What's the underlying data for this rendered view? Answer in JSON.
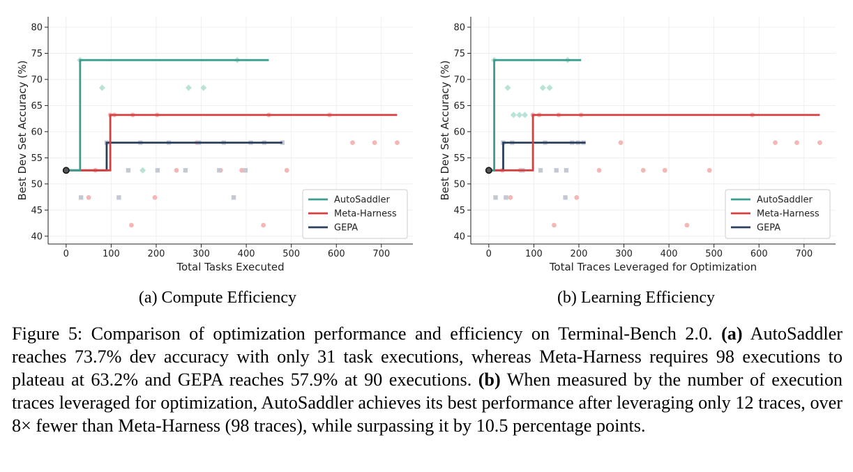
{
  "chart_data": [
    {
      "type": "scatter",
      "subcaption": "(a) Compute Efficiency",
      "xlabel": "Total Tasks Executed",
      "ylabel": "Best Dev Set Accuracy (%)",
      "xlim": [
        -40,
        770
      ],
      "ylim": [
        38.5,
        82
      ],
      "xticks": [
        0,
        100,
        200,
        300,
        400,
        500,
        600,
        700
      ],
      "yticks": [
        40,
        45,
        50,
        55,
        60,
        65,
        70,
        75,
        80
      ],
      "grid": true,
      "legend_position": "lower right",
      "start_point": {
        "x": 0,
        "y": 52.6
      },
      "series": [
        {
          "name": "AutoSaddler",
          "color": "#3a9e8f",
          "scatter_color": "#b9e3d7",
          "marker": "diamond",
          "step": [
            [
              0,
              52.6
            ],
            [
              31,
              52.6
            ],
            [
              31,
              73.7
            ],
            [
              450,
              73.7
            ]
          ],
          "points": [
            [
              31,
              73.7
            ],
            [
              80,
              68.4
            ],
            [
              170,
              52.6
            ],
            [
              272,
              68.4
            ],
            [
              305,
              68.4
            ],
            [
              380,
              73.7
            ]
          ]
        },
        {
          "name": "Meta-Harness",
          "color": "#d63f3f",
          "scatter_color": "#f3b7b8",
          "marker": "circle",
          "step": [
            [
              0,
              52.6
            ],
            [
              98,
              52.6
            ],
            [
              98,
              63.2
            ],
            [
              735,
              63.2
            ]
          ],
          "points": [
            [
              50,
              47.4
            ],
            [
              65,
              52.6
            ],
            [
              98,
              63.2
            ],
            [
              107,
              63.2
            ],
            [
              145,
              42.1
            ],
            [
              148,
              63.2
            ],
            [
              197,
              47.4
            ],
            [
              202,
              63.2
            ],
            [
              245,
              52.6
            ],
            [
              290,
              57.9
            ],
            [
              343,
              52.6
            ],
            [
              390,
              52.6
            ],
            [
              438,
              42.1
            ],
            [
              450,
              63.2
            ],
            [
              490,
              52.6
            ],
            [
              585,
              63.2
            ],
            [
              636,
              57.9
            ],
            [
              685,
              57.9
            ],
            [
              735,
              57.9
            ]
          ]
        },
        {
          "name": "GEPA",
          "color": "#2b3f5e",
          "scatter_color": "#c4c8d3",
          "marker": "square",
          "step": [
            [
              0,
              52.6
            ],
            [
              90,
              52.6
            ],
            [
              90,
              57.9
            ],
            [
              480,
              57.9
            ]
          ],
          "points": [
            [
              33,
              47.4
            ],
            [
              90,
              57.9
            ],
            [
              117,
              47.4
            ],
            [
              138,
              52.6
            ],
            [
              165,
              57.9
            ],
            [
              203,
              52.6
            ],
            [
              228,
              57.9
            ],
            [
              265,
              52.6
            ],
            [
              295,
              57.9
            ],
            [
              340,
              52.6
            ],
            [
              350,
              57.9
            ],
            [
              372,
              47.4
            ],
            [
              398,
              52.6
            ],
            [
              410,
              57.9
            ],
            [
              440,
              57.9
            ],
            [
              480,
              57.9
            ]
          ]
        }
      ]
    },
    {
      "type": "scatter",
      "subcaption": "(b) Learning Efficiency",
      "xlabel": "Total Traces Leveraged for Optimization",
      "ylabel": "Best Dev Set Accuracy (%)",
      "xlim": [
        -40,
        770
      ],
      "ylim": [
        38.5,
        82
      ],
      "xticks": [
        0,
        100,
        200,
        300,
        400,
        500,
        600,
        700
      ],
      "yticks": [
        40,
        45,
        50,
        55,
        60,
        65,
        70,
        75,
        80
      ],
      "grid": true,
      "legend_position": "lower right",
      "start_point": {
        "x": 0,
        "y": 52.6
      },
      "series": [
        {
          "name": "AutoSaddler",
          "color": "#3a9e8f",
          "scatter_color": "#b9e3d7",
          "marker": "diamond",
          "step": [
            [
              0,
              52.6
            ],
            [
              12,
              52.6
            ],
            [
              12,
              73.7
            ],
            [
              205,
              73.7
            ]
          ],
          "points": [
            [
              12,
              73.7
            ],
            [
              42,
              68.4
            ],
            [
              55,
              63.2
            ],
            [
              68,
              63.2
            ],
            [
              80,
              63.2
            ],
            [
              120,
              68.4
            ],
            [
              135,
              68.4
            ],
            [
              175,
              73.7
            ]
          ]
        },
        {
          "name": "Meta-Harness",
          "color": "#d63f3f",
          "scatter_color": "#f3b7b8",
          "marker": "circle",
          "step": [
            [
              0,
              52.6
            ],
            [
              98,
              52.6
            ],
            [
              98,
              63.2
            ],
            [
              735,
              63.2
            ]
          ],
          "points": [
            [
              30,
              52.6
            ],
            [
              48,
              47.4
            ],
            [
              70,
              52.6
            ],
            [
              98,
              63.2
            ],
            [
              112,
              63.2
            ],
            [
              145,
              42.1
            ],
            [
              155,
              63.2
            ],
            [
              195,
              47.4
            ],
            [
              205,
              63.2
            ],
            [
              245,
              52.6
            ],
            [
              293,
              57.9
            ],
            [
              343,
              52.6
            ],
            [
              391,
              52.6
            ],
            [
              440,
              42.1
            ],
            [
              490,
              52.6
            ],
            [
              585,
              63.2
            ],
            [
              636,
              57.9
            ],
            [
              684,
              57.9
            ],
            [
              735,
              57.9
            ]
          ]
        },
        {
          "name": "GEPA",
          "color": "#2b3f5e",
          "scatter_color": "#c4c8d3",
          "marker": "square",
          "step": [
            [
              0,
              52.6
            ],
            [
              32,
              52.6
            ],
            [
              32,
              57.9
            ],
            [
              215,
              57.9
            ]
          ],
          "points": [
            [
              15,
              47.4
            ],
            [
              32,
              57.9
            ],
            [
              38,
              47.4
            ],
            [
              52,
              57.9
            ],
            [
              75,
              52.6
            ],
            [
              115,
              52.6
            ],
            [
              125,
              57.9
            ],
            [
              150,
              52.6
            ],
            [
              170,
              47.4
            ],
            [
              172,
              52.6
            ],
            [
              185,
              57.9
            ],
            [
              198,
              57.9
            ],
            [
              210,
              57.9
            ]
          ]
        }
      ]
    }
  ],
  "figure_caption": {
    "label": "Figure 5: Comparison of optimization performance and efficiency on Terminal-Bench 2.0.",
    "part_a_marker": "(a)",
    "part_a_text": "AutoSaddler reaches 73.7% dev accuracy with only 31 task executions, whereas Meta-Harness requires 98 executions to plateau at 63.2% and GEPA reaches 57.9% at 90 executions.",
    "part_b_marker": "(b)",
    "part_b_text": "When measured by the number of execution traces leveraged for optimization, AutoSaddler achieves its best performance after leveraging only 12 traces, over 8× fewer than Meta-Harness (98 traces), while surpassing it by 10.5 percentage points."
  }
}
